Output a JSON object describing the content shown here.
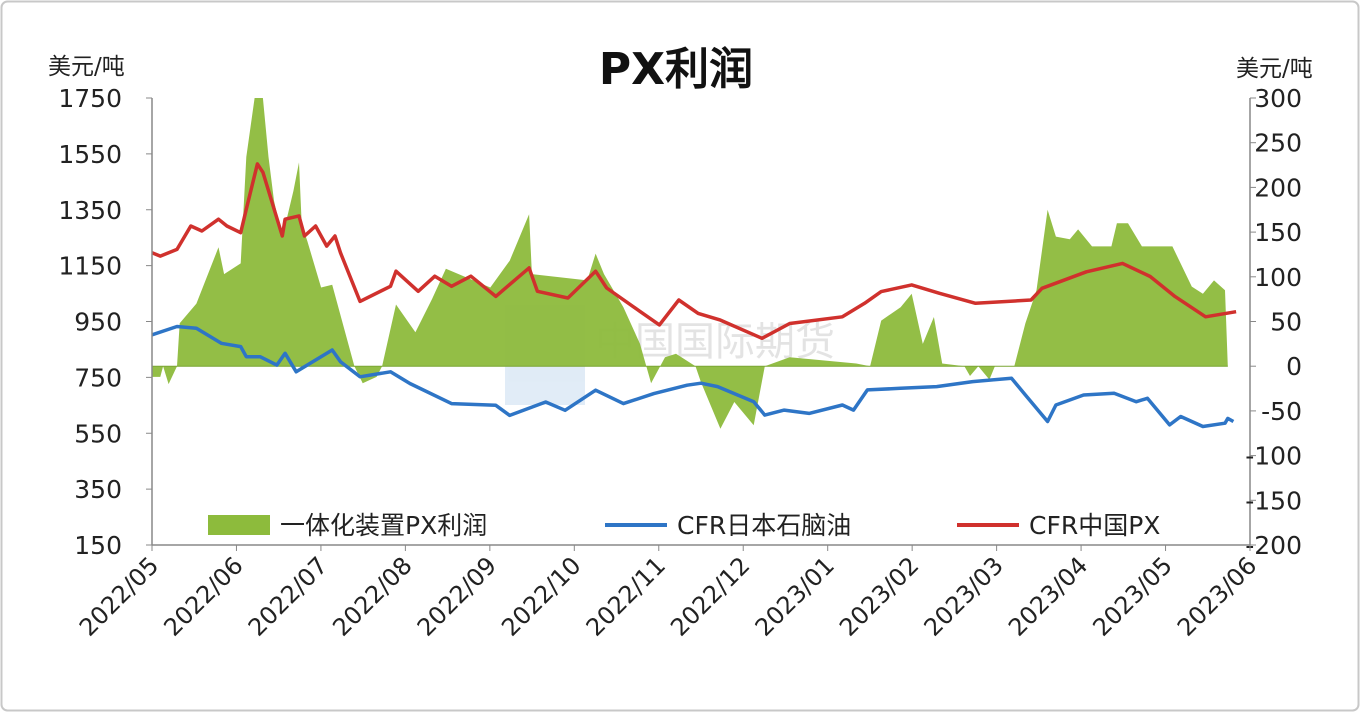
{
  "chart_data": {
    "type": "area+line (dual axis)",
    "title": "PX利润",
    "ylabel_left": "美元/吨",
    "ylabel_right": "美元/吨",
    "ylim_left": [
      150,
      1750
    ],
    "ylim_right": [
      -200,
      300
    ],
    "yticks_left": [
      "1750",
      "1550",
      "1350",
      "1150",
      "950",
      "750",
      "550",
      "350",
      "150"
    ],
    "yticks_right": [
      "300",
      "250",
      "200",
      "150",
      "100",
      "50",
      "0",
      "-50",
      "-100",
      "-150",
      "-200"
    ],
    "xticks": [
      "2022/05",
      "2022/06",
      "2022/07",
      "2022/08",
      "2022/09",
      "2022/10",
      "2022/11",
      "2022/12",
      "2023/01",
      "2023/02",
      "2023/03",
      "2023/04",
      "2023/05",
      "2023/06"
    ],
    "xlim": [
      "2022-05-01",
      "2023-06-01"
    ],
    "grid": false,
    "legend_position": "bottom-inside",
    "watermark": "中国国际期货",
    "series": [
      {
        "name": "一体化装置PX利润",
        "type": "area",
        "axis": "right",
        "color": "#8dbb3c",
        "x": [
          "2022-05-01",
          "2022-05-04",
          "2022-05-05",
          "2022-05-07",
          "2022-05-10",
          "2022-05-11",
          "2022-05-17",
          "2022-05-25",
          "2022-05-27",
          "2022-06-02",
          "2022-06-04",
          "2022-06-07",
          "2022-06-10",
          "2022-06-12",
          "2022-06-14",
          "2022-06-17",
          "2022-06-21",
          "2022-06-23",
          "2022-06-24",
          "2022-06-26",
          "2022-07-01",
          "2022-07-05",
          "2022-07-13",
          "2022-07-16",
          "2022-07-21",
          "2022-07-23",
          "2022-07-28",
          "2022-08-04",
          "2022-08-10",
          "2022-08-15",
          "2022-08-31",
          "2022-09-07",
          "2022-09-14",
          "2022-09-15",
          "2022-10-05",
          "2022-10-08",
          "2022-10-11",
          "2022-10-18",
          "2022-10-24",
          "2022-10-28",
          "2022-11-02",
          "2022-11-06",
          "2022-11-13",
          "2022-11-15",
          "2022-11-22",
          "2022-11-27",
          "2022-12-04",
          "2022-12-08",
          "2022-12-17",
          "2023-01-10",
          "2023-01-15",
          "2023-01-19",
          "2023-01-26",
          "2023-01-30",
          "2023-02-03",
          "2023-02-07",
          "2023-02-10",
          "2023-02-18",
          "2023-02-20",
          "2023-02-23",
          "2023-02-27",
          "2023-03-01",
          "2023-03-08",
          "2023-03-12",
          "2023-03-16",
          "2023-03-20",
          "2023-03-23",
          "2023-03-28",
          "2023-03-31",
          "2023-04-05",
          "2023-04-12",
          "2023-04-14",
          "2023-04-18",
          "2023-04-23",
          "2023-05-04",
          "2023-05-11",
          "2023-05-15",
          "2023-05-19",
          "2023-05-23",
          "2023-05-24"
        ],
        "values": [
          -12,
          -12,
          0,
          -20,
          0,
          48,
          70,
          133,
          103,
          115,
          234,
          300,
          300,
          234,
          185,
          144,
          196,
          228,
          159,
          140,
          88,
          91,
          0,
          -19,
          -12,
          0,
          69,
          38,
          75,
          109,
          88,
          118,
          170,
          103,
          96,
          126,
          103,
          66,
          25,
          -19,
          10,
          14,
          0,
          -18,
          -70,
          -40,
          -66,
          0,
          10,
          3,
          0,
          51,
          66,
          81,
          25,
          55,
          3,
          0,
          -11,
          0,
          -15,
          0,
          0,
          48,
          85,
          175,
          145,
          142,
          153,
          134,
          134,
          160,
          160,
          134,
          134,
          89,
          81,
          96,
          85,
          0
        ]
      },
      {
        "name": "CFR日本石脑油",
        "type": "line",
        "axis": "left",
        "color": "#2e75c6",
        "x": [
          "2022-05-01",
          "2022-05-10",
          "2022-05-17",
          "2022-05-26",
          "2022-06-02",
          "2022-06-04",
          "2022-06-09",
          "2022-06-15",
          "2022-06-18",
          "2022-06-22",
          "2022-07-05",
          "2022-07-08",
          "2022-07-15",
          "2022-07-26",
          "2022-08-02",
          "2022-08-17",
          "2022-09-02",
          "2022-09-07",
          "2022-09-20",
          "2022-09-27",
          "2022-10-08",
          "2022-10-18",
          "2022-10-29",
          "2022-11-10",
          "2022-11-15",
          "2022-11-21",
          "2022-12-04",
          "2022-12-08",
          "2022-12-15",
          "2022-12-24",
          "2023-01-05",
          "2023-01-09",
          "2023-01-14",
          "2023-01-26",
          "2023-02-08",
          "2023-02-21",
          "2023-03-07",
          "2023-03-12",
          "2023-03-20",
          "2023-03-23",
          "2023-04-02",
          "2023-04-13",
          "2023-04-21",
          "2023-04-25",
          "2023-05-03",
          "2023-05-07",
          "2023-05-15",
          "2023-05-23",
          "2023-05-24",
          "2023-05-26"
        ],
        "values": [
          902,
          932,
          926,
          872,
          860,
          824,
          824,
          794,
          836,
          770,
          848,
          806,
          752,
          770,
          728,
          656,
          650,
          614,
          662,
          632,
          704,
          656,
          692,
          722,
          729,
          717,
          663,
          615,
          633,
          621,
          651,
          633,
          705,
          711,
          717,
          735,
          747,
          687,
          592,
          651,
          687,
          693,
          663,
          675,
          580,
          610,
          574,
          586,
          603,
          592
        ]
      },
      {
        "name": "CFR中国PX",
        "type": "line",
        "axis": "left",
        "color": "#d0312d",
        "x": [
          "2022-05-01",
          "2022-05-04",
          "2022-05-10",
          "2022-05-15",
          "2022-05-19",
          "2022-05-25",
          "2022-05-28",
          "2022-06-02",
          "2022-06-04",
          "2022-06-08",
          "2022-06-10",
          "2022-06-17",
          "2022-06-18",
          "2022-06-23",
          "2022-06-25",
          "2022-06-29",
          "2022-07-03",
          "2022-07-06",
          "2022-07-08",
          "2022-07-15",
          "2022-07-26",
          "2022-07-28",
          "2022-08-05",
          "2022-08-11",
          "2022-08-17",
          "2022-08-24",
          "2022-09-02",
          "2022-09-14",
          "2022-09-17",
          "2022-09-28",
          "2022-10-08",
          "2022-10-12",
          "2022-10-24",
          "2022-10-31",
          "2022-11-07",
          "2022-11-14",
          "2022-11-22",
          "2022-12-07",
          "2022-12-17",
          "2023-01-05",
          "2023-01-13",
          "2023-01-19",
          "2023-01-30",
          "2023-02-09",
          "2023-02-22",
          "2023-03-14",
          "2023-03-18",
          "2023-04-03",
          "2023-04-16",
          "2023-04-26",
          "2023-05-05",
          "2023-05-16",
          "2023-05-27"
        ],
        "values": [
          1196,
          1184,
          1208,
          1292,
          1274,
          1316,
          1292,
          1268,
          1352,
          1514,
          1484,
          1256,
          1316,
          1328,
          1256,
          1292,
          1220,
          1256,
          1196,
          1022,
          1076,
          1130,
          1058,
          1112,
          1076,
          1112,
          1040,
          1142,
          1058,
          1034,
          1130,
          1070,
          986,
          938,
          1027,
          979,
          955,
          890,
          943,
          967,
          1015,
          1057,
          1081,
          1051,
          1015,
          1027,
          1069,
          1128,
          1158,
          1111,
          1039,
          967,
          985
        ]
      }
    ]
  }
}
